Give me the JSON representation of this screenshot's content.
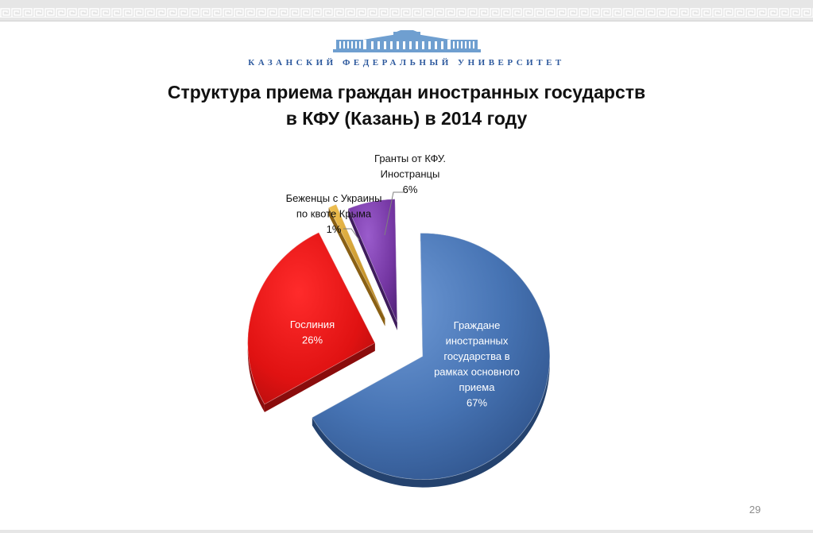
{
  "header": {
    "university_name": "КАЗАНСКИЙ ФЕДЕРАЛЬНЫЙ УНИВЕРСИТЕТ"
  },
  "slide": {
    "title_line1": "Структура приема граждан иностранных государств",
    "title_line2": "в КФУ (Казань) в 2014 году",
    "page_number": "29"
  },
  "chart_data": {
    "type": "pie",
    "title": "",
    "slices": [
      {
        "label_lines": [
          "Граждане",
          "иностранных",
          "государства в",
          "рамках основного",
          "приема"
        ],
        "pct_label": "67%",
        "value": 67,
        "color": "#4a78b8",
        "color_dark": "#24426e",
        "label_color": "#ffffff"
      },
      {
        "label_lines": [
          "Гослиния"
        ],
        "pct_label": "26%",
        "value": 26,
        "color": "#e01414",
        "color_dark": "#8a0c0c",
        "label_color": "#ffffff"
      },
      {
        "label_lines": [
          "Беженцы с Украины",
          "по квоте Крыма"
        ],
        "pct_label": "1%",
        "value": 1,
        "color": "#d9a12a",
        "color_dark": "#8a6014",
        "label_color": "#111111"
      },
      {
        "label_lines": [
          "Гранты от КФУ.",
          "Иностранцы"
        ],
        "pct_label": "6%",
        "value": 6,
        "color": "#7a3fa8",
        "color_dark": "#3e1c5c",
        "label_color": "#111111"
      }
    ],
    "legend": "none",
    "data_labels": "category name and percentage"
  }
}
